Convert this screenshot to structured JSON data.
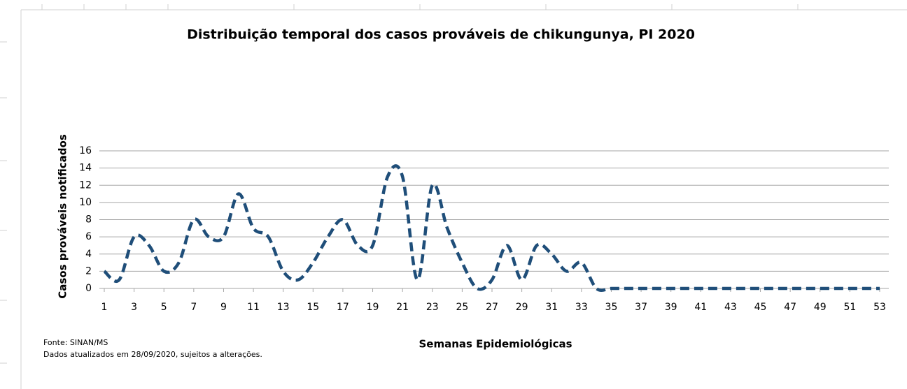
{
  "chart_data": {
    "type": "line",
    "title": "Distribuição temporal dos casos prováveis de chikungunya, PI 2020",
    "y_label": "Casos prováveis notificados",
    "x_label": "Semanas Epidemiológicas",
    "source": "Fonte: SINAN/MS",
    "note": "Dados atualizados em 28/09/2020, sujeitos a alterações.",
    "x": [
      1,
      2,
      3,
      4,
      5,
      6,
      7,
      8,
      9,
      10,
      11,
      12,
      13,
      14,
      15,
      16,
      17,
      18,
      19,
      20,
      21,
      22,
      23,
      24,
      25,
      26,
      27,
      28,
      29,
      30,
      31,
      32,
      33,
      34,
      35,
      36,
      37,
      38,
      39,
      40,
      41,
      42,
      43,
      44,
      45,
      46,
      47,
      48,
      49,
      50,
      51,
      52,
      53
    ],
    "values": [
      2,
      1,
      6,
      5,
      2,
      3,
      8,
      6,
      6,
      11,
      7,
      6,
      2,
      1,
      3,
      6,
      8,
      5,
      5,
      13,
      13,
      1,
      12,
      7,
      3,
      0,
      1,
      5,
      1,
      5,
      4,
      2,
      3,
      0,
      0,
      0,
      0,
      0,
      0,
      0,
      0,
      0,
      0,
      0,
      0,
      0,
      0,
      0,
      0,
      0,
      0,
      0,
      0
    ],
    "color": "#1f4e79",
    "xlim": [
      1,
      53
    ],
    "xticks": [
      1,
      3,
      5,
      7,
      9,
      11,
      13,
      15,
      17,
      19,
      21,
      23,
      25,
      27,
      29,
      31,
      33,
      35,
      37,
      39,
      41,
      43,
      45,
      47,
      49,
      51,
      53
    ],
    "ylim": [
      0,
      16
    ],
    "yticks": [
      0,
      2,
      4,
      6,
      8,
      10,
      12,
      14,
      16
    ],
    "grid": true
  }
}
